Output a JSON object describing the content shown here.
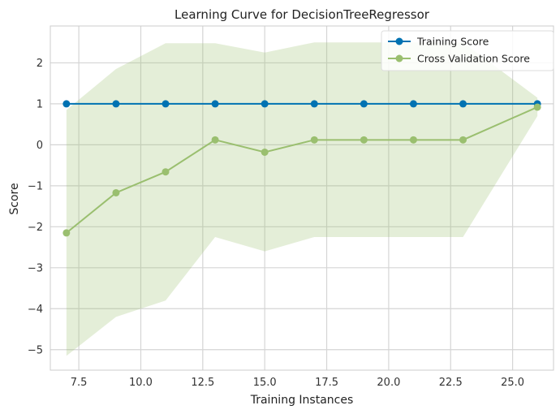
{
  "chart_data": {
    "type": "line",
    "title": "Learning Curve for DecisionTreeRegressor",
    "xlabel": "Training Instances",
    "ylabel": "Score",
    "xlim": [
      6.35,
      26.65
    ],
    "ylim": [
      -5.5,
      2.9
    ],
    "x_ticks": [
      7.5,
      10.0,
      12.5,
      15.0,
      17.5,
      20.0,
      22.5,
      25.0
    ],
    "x_tick_labels": [
      "7.5",
      "10.0",
      "12.5",
      "15.0",
      "17.5",
      "20.0",
      "22.5",
      "25.0"
    ],
    "y_ticks": [
      2,
      1,
      0,
      -1,
      -2,
      -3,
      -4,
      -5
    ],
    "y_tick_labels": [
      "2",
      "1",
      "0",
      "−1",
      "−2",
      "−3",
      "−4",
      "−5"
    ],
    "grid": true,
    "legend_position": "top-right",
    "x": [
      7,
      9,
      11,
      13,
      15,
      17,
      19,
      21,
      23,
      26
    ],
    "series": [
      {
        "name": "Training Score",
        "color": "#0072B2",
        "values": [
          1,
          1,
          1,
          1,
          1,
          1,
          1,
          1,
          1,
          1
        ]
      },
      {
        "name": "Cross Validation Score",
        "color": "#9ABF6F",
        "values": [
          -2.15,
          -1.17,
          -0.66,
          0.12,
          -0.18,
          0.12,
          0.12,
          0.12,
          0.12,
          0.92
        ],
        "band_upper": [
          0.85,
          1.85,
          2.48,
          2.48,
          2.25,
          2.5,
          2.5,
          2.5,
          2.5,
          1.15
        ],
        "band_lower": [
          -5.15,
          -4.2,
          -3.8,
          -2.25,
          -2.6,
          -2.25,
          -2.25,
          -2.25,
          -2.25,
          0.7
        ]
      }
    ]
  }
}
